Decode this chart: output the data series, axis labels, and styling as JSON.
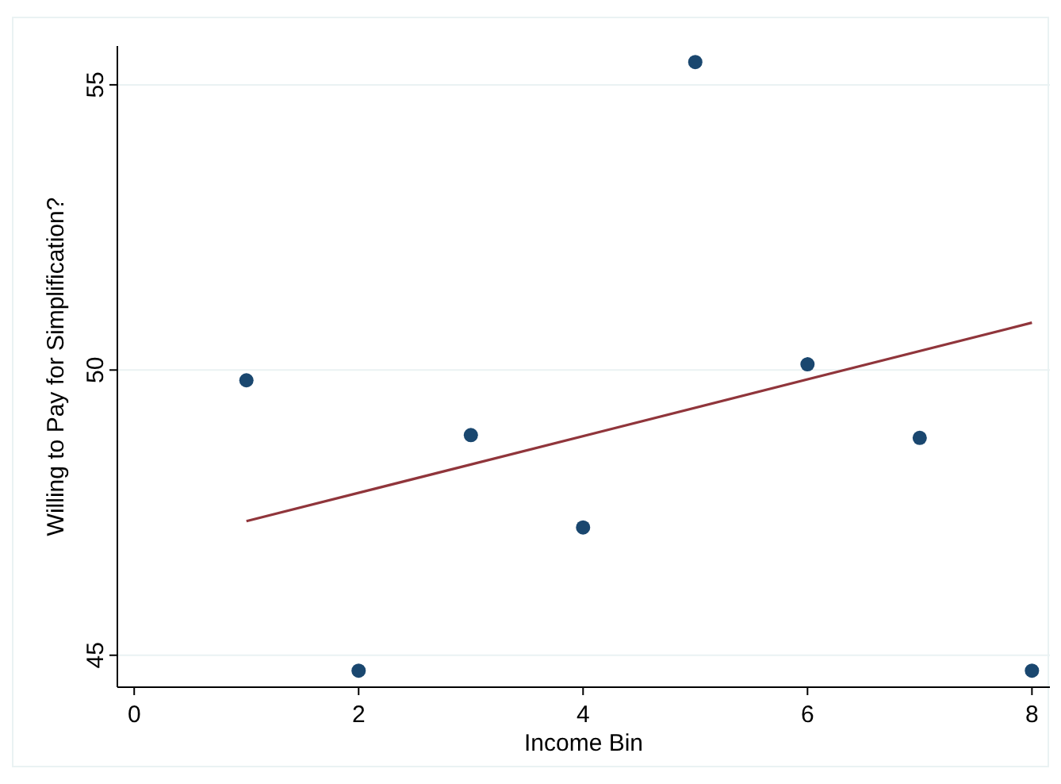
{
  "chart_data": {
    "type": "scatter",
    "xlabel": "Income Bin",
    "ylabel": "Willing to Pay for Simplification?",
    "xlim": [
      -0.15,
      8.16
    ],
    "ylim": [
      44.44,
      55.68
    ],
    "xticks": [
      0,
      2,
      4,
      6,
      8
    ],
    "yticks": [
      45,
      50,
      55
    ],
    "grid": "y",
    "marker": "circle",
    "series": [
      {
        "color": "#1a476f",
        "x": [
          1,
          2,
          3,
          4,
          5,
          6,
          7,
          8
        ],
        "values": [
          49.82,
          44.73,
          48.86,
          47.24,
          55.4,
          50.1,
          48.81,
          44.73
        ]
      },
      {
        "type": "line",
        "color": "#90353b",
        "x": [
          1,
          8
        ],
        "values": [
          47.35,
          50.83
        ],
        "marker": "none",
        "line_style": "solid"
      }
    ]
  }
}
